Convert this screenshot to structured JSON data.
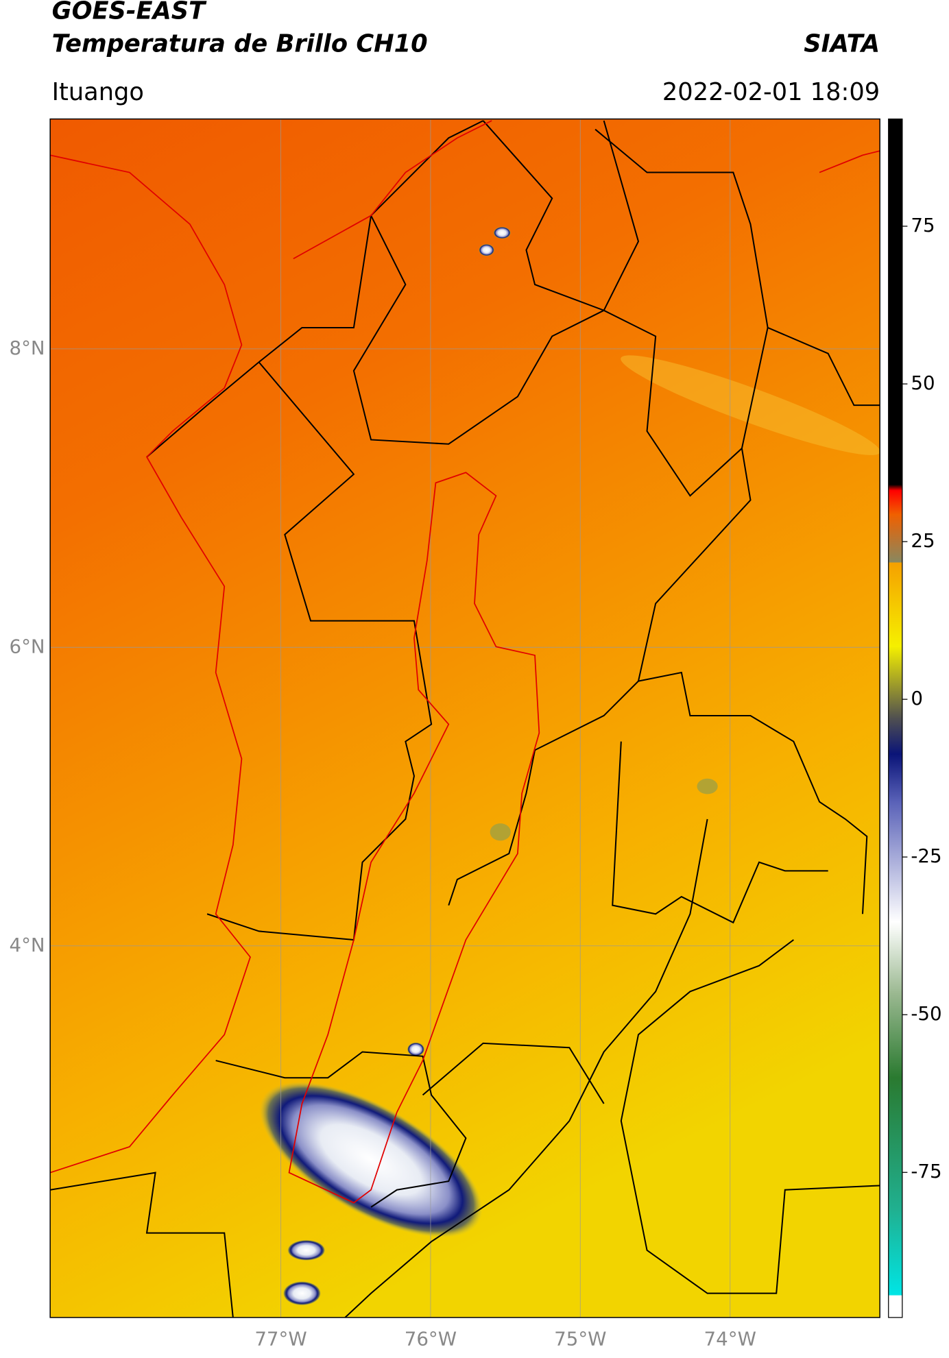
{
  "chart_data": {
    "type": "map",
    "title": "GOES-EAST",
    "subtitle": "Temperatura de Brillo CH10",
    "source": "SIATA",
    "location": "Ituango",
    "timestamp": "2022-02-01 18:09",
    "xlim": [
      -78.54,
      -73.0
    ],
    "ylim": [
      1.51,
      9.54
    ],
    "xticks": [
      {
        "value": -77,
        "label": "77°W"
      },
      {
        "value": -76,
        "label": "76°W"
      },
      {
        "value": -75,
        "label": "75°W"
      },
      {
        "value": -74,
        "label": "74°W"
      }
    ],
    "yticks": [
      {
        "value": 8,
        "label": "8°N"
      },
      {
        "value": 6,
        "label": "6°N"
      },
      {
        "value": 4,
        "label": "4°N"
      }
    ],
    "grid": true,
    "colorbar": {
      "lim": [
        -98,
        92
      ],
      "ticks": [
        75,
        50,
        25,
        0,
        -25,
        -50,
        -75
      ]
    }
  }
}
